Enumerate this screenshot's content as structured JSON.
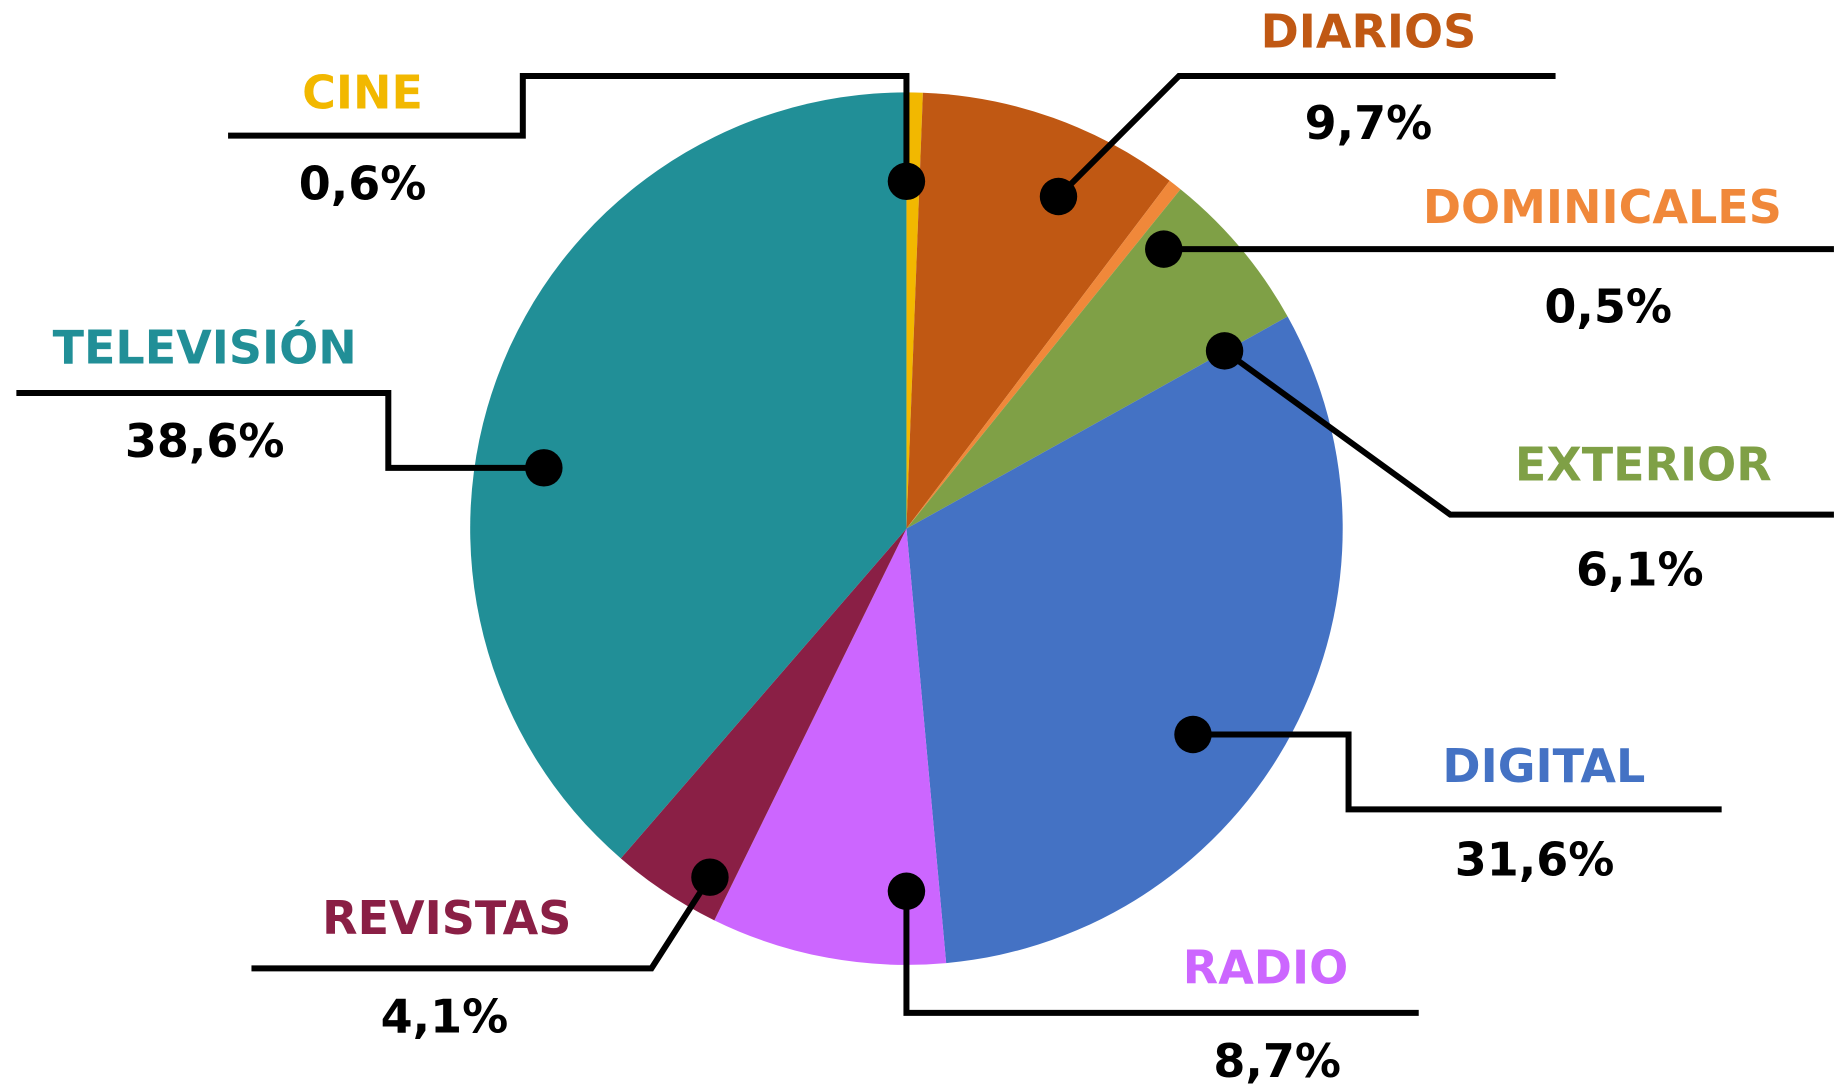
{
  "chart_data": {
    "type": "pie",
    "categories": [
      "CINE",
      "DIARIOS",
      "DOMINICALES",
      "EXTERIOR",
      "DIGITAL",
      "RADIO",
      "REVISTAS",
      "TELEVISIÓN"
    ],
    "values": [
      0.6,
      9.7,
      0.5,
      6.1,
      31.6,
      8.7,
      4.1,
      38.6
    ],
    "value_labels": [
      "0,6%",
      "9,7%",
      "0,5%",
      "6,1%",
      "31,6%",
      "8,7%",
      "4,1%",
      "38,6%"
    ],
    "colors": [
      "#f2b800",
      "#c05813",
      "#f0883a",
      "#7fa046",
      "#4472c4",
      "#cc66ff",
      "#8a1f45",
      "#218f97"
    ]
  }
}
